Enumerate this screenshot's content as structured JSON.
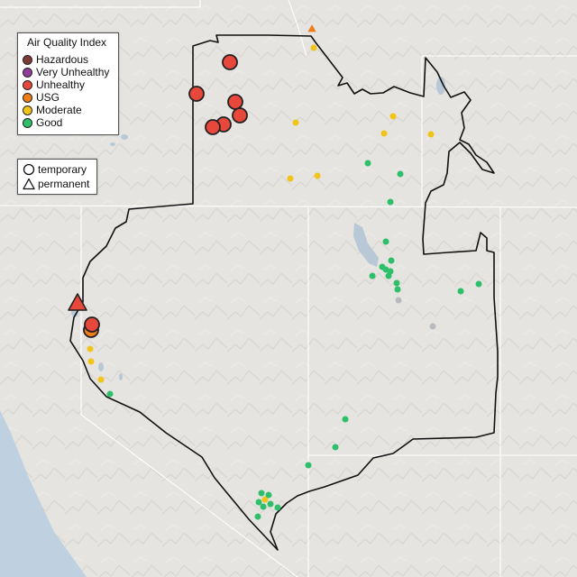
{
  "legend": {
    "title": "Air Quality Index",
    "categories": [
      {
        "label": "Hazardous",
        "color": "#7e3a36"
      },
      {
        "label": "Very Unhealthy",
        "color": "#8f3f97"
      },
      {
        "label": "Unhealthy",
        "color": "#e8473c"
      },
      {
        "label": "USG",
        "color": "#ef7d1a"
      },
      {
        "label": "Moderate",
        "color": "#f2c418"
      },
      {
        "label": "Good",
        "color": "#2dbf6a"
      }
    ]
  },
  "shape_legend": {
    "temporary": "temporary",
    "permanent": "permanent"
  },
  "colors": {
    "land": "#e6e4e1",
    "water": "#bfd1e0",
    "lake": "#b9c8d6",
    "state_line": "#ffffff",
    "region_border": "#111111",
    "unknown_monitor": "#b8bcc0"
  }
}
